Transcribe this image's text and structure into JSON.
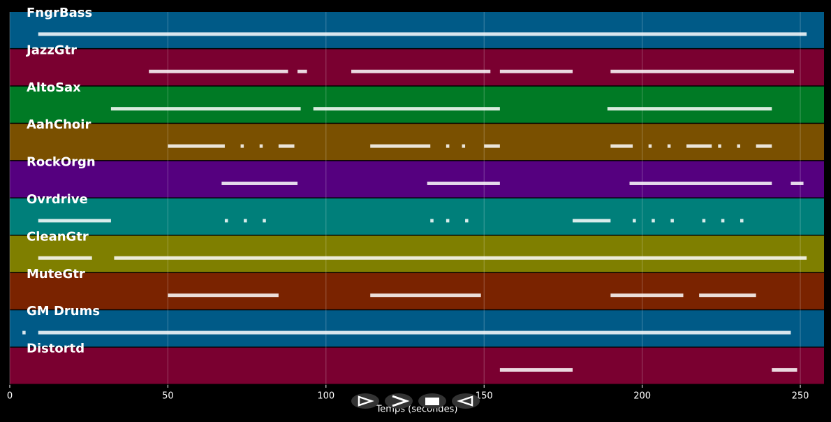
{
  "chart_data": {
    "type": "timeline",
    "xlabel": "Temps (secondes)",
    "xlim": [
      0,
      257.5
    ],
    "xticks": [
      0,
      50,
      100,
      150,
      200,
      250
    ],
    "grid": true,
    "tracks": [
      {
        "name": "FngrBass",
        "color": "#005a87",
        "segments": [
          [
            9,
            252
          ]
        ]
      },
      {
        "name": "JazzGtr",
        "color": "#7a0030",
        "segments": [
          [
            44,
            88
          ],
          [
            91,
            94
          ],
          [
            108,
            152
          ],
          [
            155,
            178
          ],
          [
            190,
            248
          ]
        ]
      },
      {
        "name": "AltoSax",
        "color": "#007a25",
        "segments": [
          [
            32,
            92
          ],
          [
            96,
            155
          ],
          [
            189,
            241
          ]
        ]
      },
      {
        "name": "AahChoir",
        "color": "#7a5000",
        "segments": [
          [
            50,
            68
          ],
          [
            73,
            74
          ],
          [
            79,
            80
          ],
          [
            85,
            90
          ],
          [
            114,
            133
          ],
          [
            138,
            139
          ],
          [
            143,
            144
          ],
          [
            150,
            155
          ],
          [
            190,
            197
          ],
          [
            202,
            203
          ],
          [
            208,
            209
          ],
          [
            214,
            222
          ],
          [
            224,
            225
          ],
          [
            230,
            231
          ],
          [
            236,
            241
          ]
        ]
      },
      {
        "name": "RockOrgn",
        "color": "#55007f",
        "segments": [
          [
            67,
            91
          ],
          [
            132,
            155
          ],
          [
            196,
            241
          ],
          [
            247,
            251
          ]
        ]
      },
      {
        "name": "Ovrdrive",
        "color": "#007f7a",
        "segments": [
          [
            9,
            32
          ],
          [
            68,
            69
          ],
          [
            74,
            75
          ],
          [
            80,
            81
          ],
          [
            133,
            134
          ],
          [
            138,
            139
          ],
          [
            144,
            145
          ],
          [
            178,
            190
          ],
          [
            197,
            198
          ],
          [
            203,
            204
          ],
          [
            209,
            210
          ],
          [
            219,
            220
          ],
          [
            225,
            226
          ],
          [
            231,
            232
          ]
        ]
      },
      {
        "name": "CleanGtr",
        "color": "#7f7f00",
        "segments": [
          [
            9,
            26
          ],
          [
            33,
            252
          ]
        ]
      },
      {
        "name": "MuteGtr",
        "color": "#7a2300",
        "segments": [
          [
            50,
            85
          ],
          [
            114,
            149
          ],
          [
            190,
            213
          ],
          [
            218,
            236
          ]
        ]
      },
      {
        "name": "GM Drums",
        "color": "#005a87",
        "segments": [
          [
            4,
            5
          ],
          [
            9,
            247
          ]
        ]
      },
      {
        "name": "Distortd",
        "color": "#7a0030",
        "segments": [
          [
            155,
            178
          ],
          [
            241,
            249
          ]
        ]
      }
    ]
  }
}
